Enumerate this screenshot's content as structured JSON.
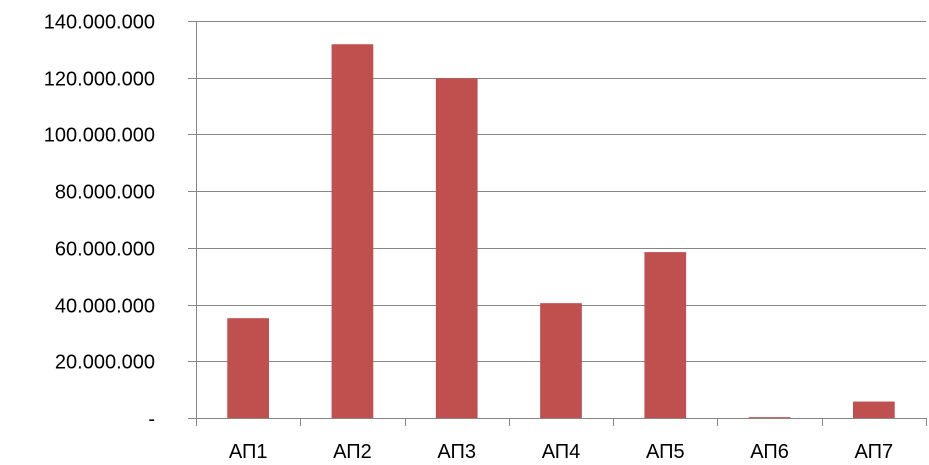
{
  "chart_data": {
    "type": "bar",
    "title": "",
    "xlabel": "",
    "ylabel": "",
    "categories": [
      "АП1",
      "АП2",
      "АП3",
      "АП4",
      "АП5",
      "АП6",
      "АП7"
    ],
    "values": [
      35200000,
      131800000,
      119800000,
      40500000,
      58500000,
      300000,
      5800000
    ],
    "ylim": [
      0,
      140000000
    ],
    "y_ticks": [
      0,
      20000000,
      40000000,
      60000000,
      80000000,
      100000000,
      120000000,
      140000000
    ],
    "y_tick_labels": [
      "-",
      "20.000.000",
      "40.000.000",
      "60.000.000",
      "80.000.000",
      "100.000.000",
      "120.000.000",
      "140.000.000"
    ],
    "grid": true,
    "legend": "none",
    "colors": {
      "bar": "#c0504d",
      "grid": "#868686",
      "axis": "#868686"
    }
  }
}
